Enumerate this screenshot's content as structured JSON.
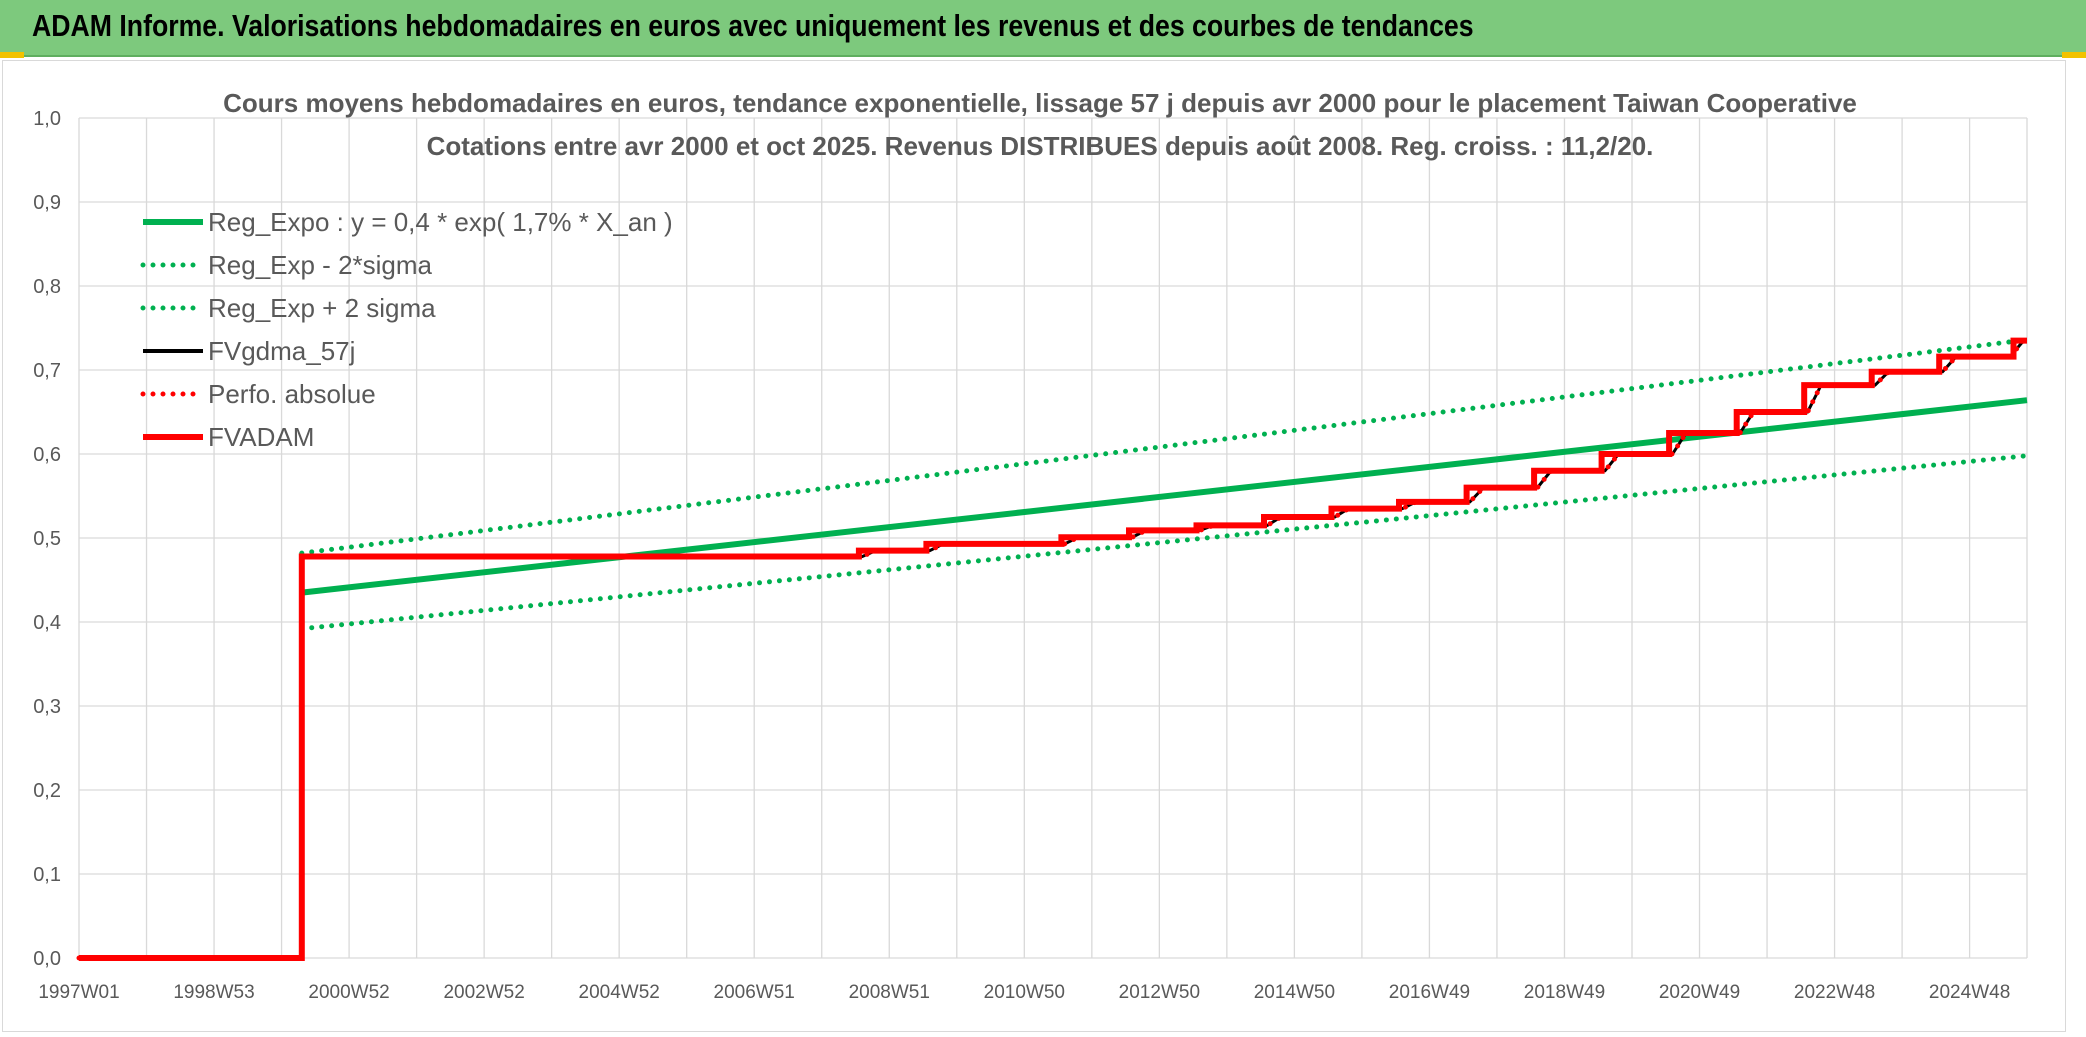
{
  "header": {
    "title": "ADAM Informe. Valorisations hebdomadaires en euros avec uniquement les revenus et des courbes de tendances",
    "background_color": "#7dc97d"
  },
  "chart_data": {
    "type": "line",
    "title": "Cours moyens hebdomadaires en euros, tendance exponentielle, lissage 57 j depuis avr 2000 pour le placement Taiwan Cooperative",
    "subtitle": "Cotations entre avr 2000 et oct 2025. Revenus DISTRIBUES depuis août 2008. Reg. croiss. : 11,2/20.",
    "xlabel": "",
    "ylabel": "",
    "ylim": [
      0,
      1.0
    ],
    "xlim": [
      1997.0,
      2025.85
    ],
    "y_ticks": [
      "0,0",
      "0,1",
      "0,2",
      "0,3",
      "0,4",
      "0,5",
      "0,6",
      "0,7",
      "0,8",
      "0,9",
      "1,0"
    ],
    "x_ticks": [
      {
        "label": "1997W01",
        "x": 1997.0
      },
      {
        "label": "1998W53",
        "x": 1999.0
      },
      {
        "label": "2000W52",
        "x": 2001.0
      },
      {
        "label": "2002W52",
        "x": 2003.0
      },
      {
        "label": "2004W52",
        "x": 2005.0
      },
      {
        "label": "2006W51",
        "x": 2007.0
      },
      {
        "label": "2008W51",
        "x": 2009.0
      },
      {
        "label": "2010W50",
        "x": 2011.0
      },
      {
        "label": "2012W50",
        "x": 2013.0
      },
      {
        "label": "2014W50",
        "x": 2015.0
      },
      {
        "label": "2016W49",
        "x": 2017.0
      },
      {
        "label": "2018W49",
        "x": 2019.0
      },
      {
        "label": "2020W49",
        "x": 2021.0
      },
      {
        "label": "2022W48",
        "x": 2023.0
      },
      {
        "label": "2024W48",
        "x": 2025.0
      }
    ],
    "grid": true,
    "legend_position": "top-left",
    "series": [
      {
        "name": "Reg_Expo : y = 0,4 * exp( 1,7% *  X_an )",
        "color": "#00b050",
        "style": "solid",
        "x": [
          2000.3,
          2025.85
        ],
        "y": [
          0.435,
          0.664
        ]
      },
      {
        "name": "Reg_Exp - 2*sigma",
        "color": "#00b050",
        "style": "dotted",
        "x": [
          2000.3,
          2025.85
        ],
        "y": [
          0.392,
          0.598
        ]
      },
      {
        "name": "Reg_Exp + 2 sigma",
        "color": "#00b050",
        "style": "dotted",
        "x": [
          2000.3,
          2025.85
        ],
        "y": [
          0.482,
          0.736
        ]
      },
      {
        "name": "FVgdma_57j",
        "color": "#000000",
        "style": "solid",
        "x": [
          1997.0,
          2000.3,
          2000.3,
          2008.6,
          2008.8,
          2009.6,
          2009.8,
          2011.6,
          2011.8,
          2012.6,
          2012.8,
          2013.6,
          2013.8,
          2014.6,
          2014.8,
          2015.6,
          2015.8,
          2016.6,
          2016.8,
          2017.6,
          2017.8,
          2018.6,
          2018.8,
          2019.6,
          2019.8,
          2020.6,
          2020.8,
          2021.6,
          2021.8,
          2022.6,
          2022.8,
          2023.6,
          2023.8,
          2024.6,
          2024.8,
          2025.6,
          2025.8
        ],
        "y": [
          0.0,
          0.0,
          0.478,
          0.478,
          0.485,
          0.485,
          0.493,
          0.493,
          0.501,
          0.501,
          0.509,
          0.509,
          0.515,
          0.515,
          0.525,
          0.525,
          0.535,
          0.535,
          0.543,
          0.543,
          0.56,
          0.56,
          0.58,
          0.58,
          0.6,
          0.6,
          0.625,
          0.625,
          0.65,
          0.65,
          0.682,
          0.682,
          0.698,
          0.698,
          0.716,
          0.716,
          0.735
        ]
      },
      {
        "name": "Perfo. absolue",
        "color": "#ff0000",
        "style": "dotted",
        "x": [
          1997.0,
          2000.3,
          2000.3,
          2008.6,
          2008.8,
          2009.6,
          2009.8,
          2011.6,
          2011.8,
          2012.6,
          2012.8,
          2013.6,
          2013.8,
          2014.6,
          2014.8,
          2015.6,
          2015.8,
          2016.6,
          2016.8,
          2017.6,
          2017.8,
          2018.6,
          2018.8,
          2019.6,
          2019.8,
          2020.6,
          2020.8,
          2021.6,
          2021.8,
          2022.6,
          2022.8,
          2023.6,
          2023.8,
          2024.6,
          2024.8,
          2025.6,
          2025.8
        ],
        "y": [
          0.0,
          0.0,
          0.478,
          0.478,
          0.485,
          0.485,
          0.493,
          0.493,
          0.501,
          0.501,
          0.509,
          0.509,
          0.515,
          0.515,
          0.525,
          0.525,
          0.535,
          0.535,
          0.543,
          0.543,
          0.56,
          0.56,
          0.58,
          0.58,
          0.6,
          0.6,
          0.625,
          0.625,
          0.65,
          0.65,
          0.682,
          0.682,
          0.698,
          0.698,
          0.716,
          0.716,
          0.735
        ]
      },
      {
        "name": "FVADAM",
        "color": "#ff0000",
        "style": "solid",
        "x": [
          1997.0,
          2000.3,
          2000.3,
          2008.55,
          2008.55,
          2009.55,
          2009.55,
          2011.55,
          2011.55,
          2012.55,
          2012.55,
          2013.55,
          2013.55,
          2014.55,
          2014.55,
          2015.55,
          2015.55,
          2016.55,
          2016.55,
          2017.55,
          2017.55,
          2018.55,
          2018.55,
          2019.55,
          2019.55,
          2020.55,
          2020.55,
          2021.55,
          2021.55,
          2022.55,
          2022.55,
          2023.55,
          2023.55,
          2024.55,
          2024.55,
          2025.65,
          2025.65,
          2025.85
        ],
        "y": [
          0.0,
          0.0,
          0.478,
          0.478,
          0.485,
          0.485,
          0.493,
          0.493,
          0.501,
          0.501,
          0.509,
          0.509,
          0.515,
          0.515,
          0.525,
          0.525,
          0.535,
          0.535,
          0.543,
          0.543,
          0.56,
          0.56,
          0.58,
          0.58,
          0.6,
          0.6,
          0.625,
          0.625,
          0.65,
          0.65,
          0.682,
          0.682,
          0.698,
          0.698,
          0.716,
          0.716,
          0.735,
          0.735
        ]
      }
    ]
  }
}
